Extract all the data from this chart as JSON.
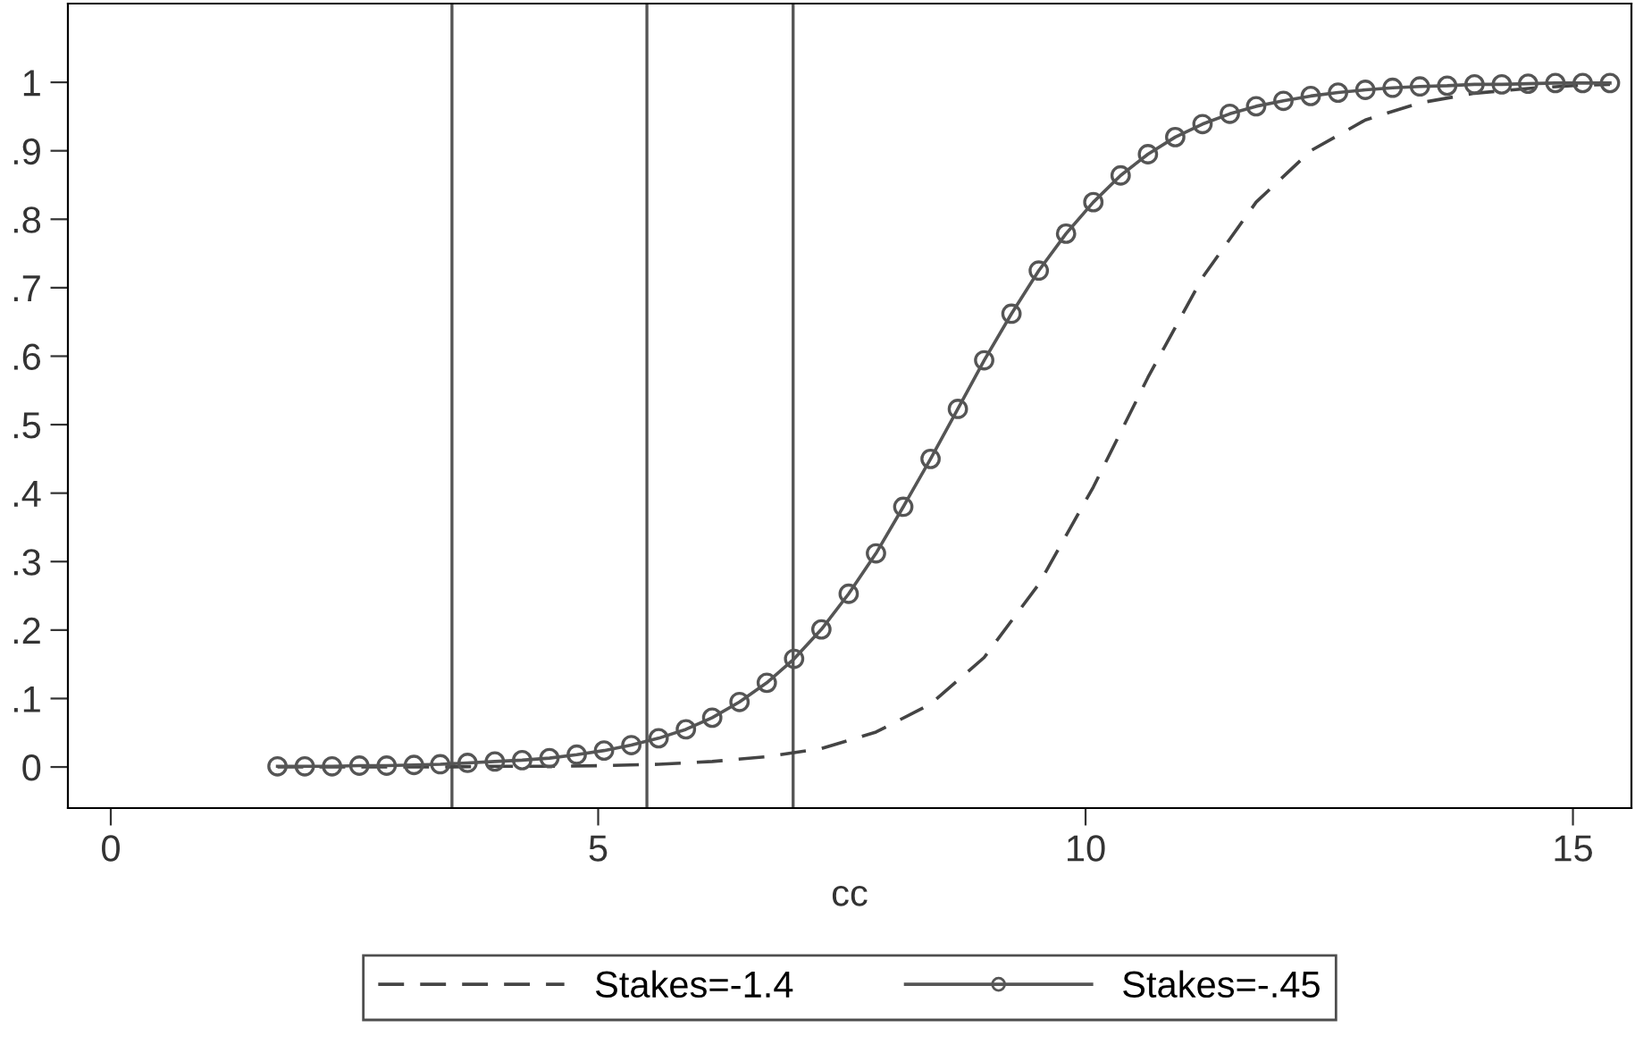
{
  "chart_data": {
    "type": "line",
    "xlabel": "cc",
    "xlim": [
      -0.44,
      15.6
    ],
    "xticks": [
      0,
      5,
      10,
      15
    ],
    "ylim": [
      -0.06,
      1.115
    ],
    "yticks": [
      0,
      {
        "value": 0.1,
        "label": ".1"
      },
      {
        "value": 0.2,
        "label": ".2"
      },
      {
        "value": 0.3,
        "label": ".3"
      },
      {
        "value": 0.4,
        "label": ".4"
      },
      {
        "value": 0.5,
        "label": ".5"
      },
      {
        "value": 0.6,
        "label": ".6"
      },
      {
        "value": 0.7,
        "label": ".7"
      },
      {
        "value": 0.8,
        "label": ".8"
      },
      {
        "value": 0.9,
        "label": ".9"
      },
      1
    ],
    "grid": false,
    "legend": "bottom",
    "ref_lines": [
      {
        "axis": "x",
        "value": 3.5,
        "color": "#555555"
      },
      {
        "axis": "x",
        "value": 5.5,
        "color": "#555555"
      },
      {
        "axis": "x",
        "value": 7.0,
        "color": "#555555"
      }
    ],
    "series": [
      {
        "name": "Stakes=-1.4",
        "color": "#444444",
        "line_style": "dashed",
        "marker": "none",
        "x": [
          1.71,
          2.27,
          2.83,
          3.38,
          3.94,
          4.5,
          5.06,
          5.62,
          6.17,
          6.73,
          7.29,
          7.85,
          8.41,
          8.96,
          9.52,
          10.08,
          10.64,
          11.2,
          11.75,
          12.31,
          12.87,
          13.43,
          13.99,
          14.54,
          15.1,
          15.38
        ],
        "values": [
          0.0,
          0.0,
          0.0,
          0.0,
          0.001,
          0.001,
          0.002,
          0.004,
          0.008,
          0.015,
          0.027,
          0.051,
          0.092,
          0.16,
          0.267,
          0.409,
          0.569,
          0.715,
          0.825,
          0.9,
          0.945,
          0.97,
          0.984,
          0.991,
          0.996,
          0.997
        ]
      },
      {
        "name": "Stakes=-.45",
        "color": "#555555",
        "line_style": "solid",
        "marker": "circle",
        "x": [
          1.71,
          1.99,
          2.27,
          2.55,
          2.83,
          3.11,
          3.38,
          3.66,
          3.94,
          4.22,
          4.5,
          4.78,
          5.06,
          5.34,
          5.62,
          5.9,
          6.17,
          6.45,
          6.73,
          7.01,
          7.29,
          7.57,
          7.85,
          8.13,
          8.41,
          8.69,
          8.96,
          9.24,
          9.52,
          9.8,
          10.08,
          10.36,
          10.64,
          10.92,
          11.2,
          11.48,
          11.75,
          12.03,
          12.31,
          12.59,
          12.87,
          13.15,
          13.43,
          13.71,
          13.99,
          14.27,
          14.54,
          14.82,
          15.1,
          15.38
        ],
        "values": [
          0.001,
          0.001,
          0.001,
          0.002,
          0.002,
          0.003,
          0.004,
          0.006,
          0.008,
          0.01,
          0.013,
          0.018,
          0.024,
          0.032,
          0.042,
          0.055,
          0.072,
          0.095,
          0.123,
          0.158,
          0.201,
          0.253,
          0.312,
          0.38,
          0.45,
          0.523,
          0.594,
          0.662,
          0.725,
          0.779,
          0.825,
          0.864,
          0.895,
          0.92,
          0.939,
          0.954,
          0.965,
          0.973,
          0.98,
          0.985,
          0.989,
          0.992,
          0.994,
          0.995,
          0.997,
          0.997,
          0.998,
          0.999,
          0.999,
          0.999
        ]
      }
    ]
  }
}
